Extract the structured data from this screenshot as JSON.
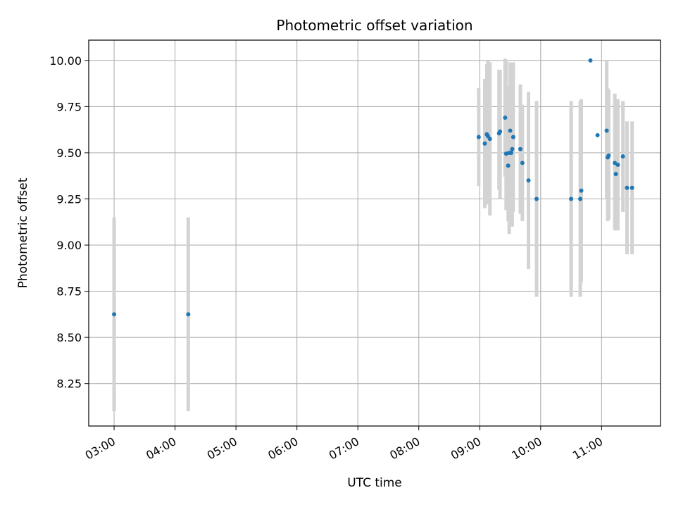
{
  "chart_data": {
    "type": "scatter",
    "title": "Photometric offset variation",
    "xlabel": "UTC time",
    "ylabel": "Photometric offset",
    "x_unit": "UTC time (hours)",
    "xlim": [
      "02:35",
      "11:58"
    ],
    "ylim": [
      8.02,
      10.11
    ],
    "x_ticks": [
      "03:00",
      "04:00",
      "05:00",
      "06:00",
      "07:00",
      "08:00",
      "09:00",
      "10:00",
      "11:00"
    ],
    "y_ticks": [
      "8.25",
      "8.50",
      "8.75",
      "9.00",
      "9.25",
      "9.50",
      "9.75",
      "10.00"
    ],
    "grid": true,
    "colors": {
      "points": "#1f77b4",
      "error_bars": "#d3d3d3",
      "grid": "#b0b0b0",
      "axes": "#000000"
    },
    "points": [
      {
        "x": "03:00",
        "y": 8.625,
        "ylo": 8.1,
        "yhi": 9.15
      },
      {
        "x": "04:13",
        "y": 8.625,
        "ylo": 8.1,
        "yhi": 9.15
      },
      {
        "x": "08:59",
        "y": 9.585,
        "ylo": 9.32,
        "yhi": 9.85
      },
      {
        "x": "09:05",
        "y": 9.55,
        "ylo": 9.2,
        "yhi": 9.9
      },
      {
        "x": "09:07",
        "y": 9.6,
        "ylo": 9.22,
        "yhi": 9.98
      },
      {
        "x": "09:08",
        "y": 9.59,
        "ylo": 9.25,
        "yhi": 10.0
      },
      {
        "x": "09:10",
        "y": 9.575,
        "ylo": 9.16,
        "yhi": 9.99
      },
      {
        "x": "09:19",
        "y": 9.605,
        "ylo": 9.3,
        "yhi": 9.95
      },
      {
        "x": "09:20",
        "y": 9.615,
        "ylo": 9.25,
        "yhi": 9.95
      },
      {
        "x": "09:25",
        "y": 9.69,
        "ylo": 9.37,
        "yhi": 10.01
      },
      {
        "x": "09:26",
        "y": 9.495,
        "ylo": 9.19,
        "yhi": 10.0
      },
      {
        "x": "09:28",
        "y": 9.43,
        "ylo": 9.13,
        "yhi": 9.86
      },
      {
        "x": "09:29",
        "y": 9.5,
        "ylo": 9.06,
        "yhi": 9.75
      },
      {
        "x": "09:30",
        "y": 9.62,
        "ylo": 9.23,
        "yhi": 9.99
      },
      {
        "x": "09:31",
        "y": 9.5,
        "ylo": 9.2,
        "yhi": 9.8
      },
      {
        "x": "09:32",
        "y": 9.52,
        "ylo": 9.1,
        "yhi": 9.99
      },
      {
        "x": "09:33",
        "y": 9.585,
        "ylo": 9.18,
        "yhi": 9.99
      },
      {
        "x": "09:40",
        "y": 9.52,
        "ylo": 9.17,
        "yhi": 9.87
      },
      {
        "x": "09:42",
        "y": 9.445,
        "ylo": 9.13,
        "yhi": 9.76
      },
      {
        "x": "09:48",
        "y": 9.35,
        "ylo": 8.87,
        "yhi": 9.83
      },
      {
        "x": "09:56",
        "y": 9.25,
        "ylo": 8.72,
        "yhi": 9.78
      },
      {
        "x": "10:30",
        "y": 9.25,
        "ylo": 8.72,
        "yhi": 9.78
      },
      {
        "x": "10:39",
        "y": 9.25,
        "ylo": 8.72,
        "yhi": 9.78
      },
      {
        "x": "10:40",
        "y": 9.295,
        "ylo": 8.8,
        "yhi": 9.79
      },
      {
        "x": "10:49",
        "y": 10.0,
        "ylo": 10.0,
        "yhi": 10.0
      },
      {
        "x": "10:56",
        "y": 9.595,
        "ylo": 9.59,
        "yhi": 9.6
      },
      {
        "x": "11:05",
        "y": 9.62,
        "ylo": 9.25,
        "yhi": 10.0
      },
      {
        "x": "11:06",
        "y": 9.475,
        "ylo": 9.13,
        "yhi": 9.85
      },
      {
        "x": "11:07",
        "y": 9.485,
        "ylo": 9.14,
        "yhi": 9.84
      },
      {
        "x": "11:13",
        "y": 9.445,
        "ylo": 9.08,
        "yhi": 9.82
      },
      {
        "x": "11:14",
        "y": 9.385,
        "ylo": 9.08,
        "yhi": 9.74
      },
      {
        "x": "11:16",
        "y": 9.435,
        "ylo": 9.08,
        "yhi": 9.79
      },
      {
        "x": "11:21",
        "y": 9.48,
        "ylo": 9.18,
        "yhi": 9.78
      },
      {
        "x": "11:25",
        "y": 9.31,
        "ylo": 8.95,
        "yhi": 9.67
      },
      {
        "x": "11:30",
        "y": 9.31,
        "ylo": 8.95,
        "yhi": 9.67
      }
    ]
  }
}
